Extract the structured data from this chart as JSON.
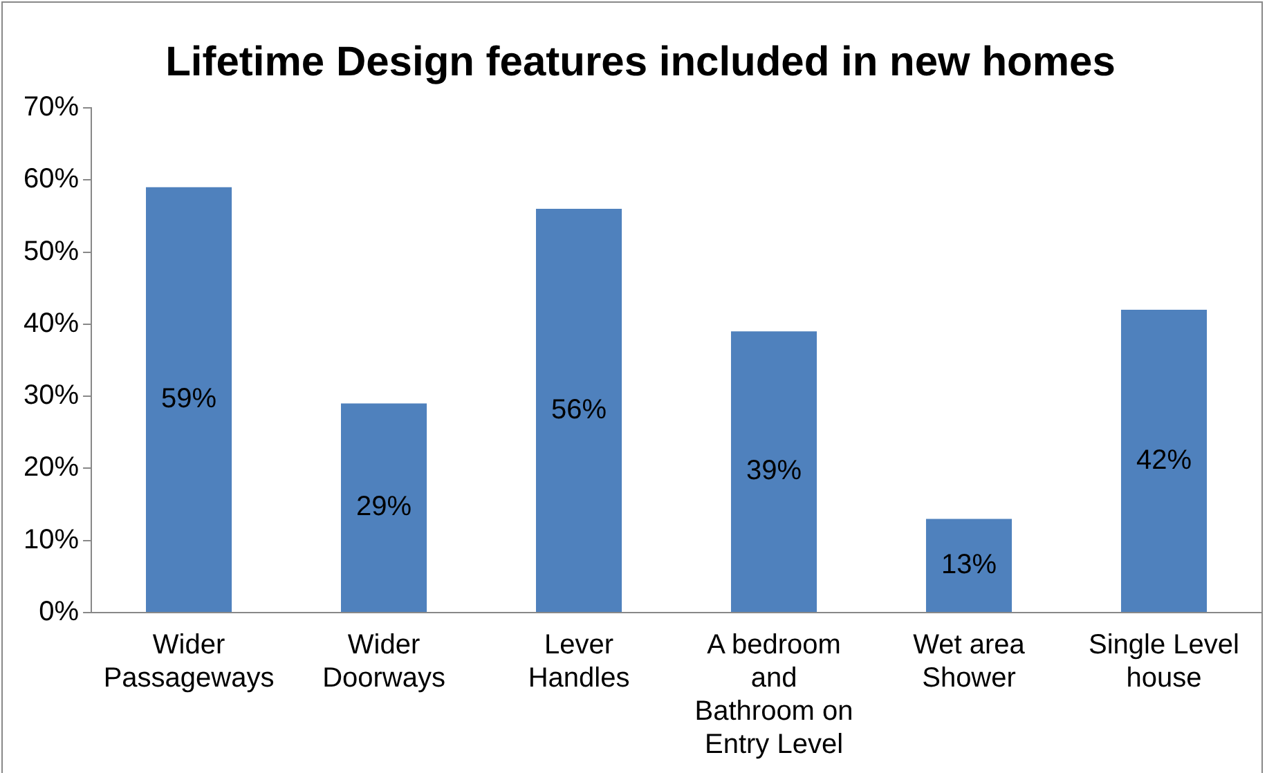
{
  "chart_data": {
    "type": "bar",
    "title": "Lifetime Design features included in new homes",
    "categories": [
      "Wider Passageways",
      "Wider Doorways",
      "Lever Handles",
      "A bedroom and Bathroom on Entry Level",
      "Wet area Shower",
      "Single Level house"
    ],
    "values": [
      59,
      29,
      56,
      39,
      13,
      42
    ],
    "value_labels": [
      "59%",
      "29%",
      "56%",
      "39%",
      "13%",
      "42%"
    ],
    "color": "#4f81bd",
    "ylim": [
      0,
      70
    ],
    "yticks": [
      {
        "value": 0,
        "label": "0%"
      },
      {
        "value": 10,
        "label": "10%"
      },
      {
        "value": 20,
        "label": "20%"
      },
      {
        "value": 30,
        "label": "30%"
      },
      {
        "value": 40,
        "label": "40%"
      },
      {
        "value": 50,
        "label": "50%"
      },
      {
        "value": 60,
        "label": "60%"
      },
      {
        "value": 70,
        "label": "70%"
      }
    ],
    "grid": false,
    "legend": false
  }
}
